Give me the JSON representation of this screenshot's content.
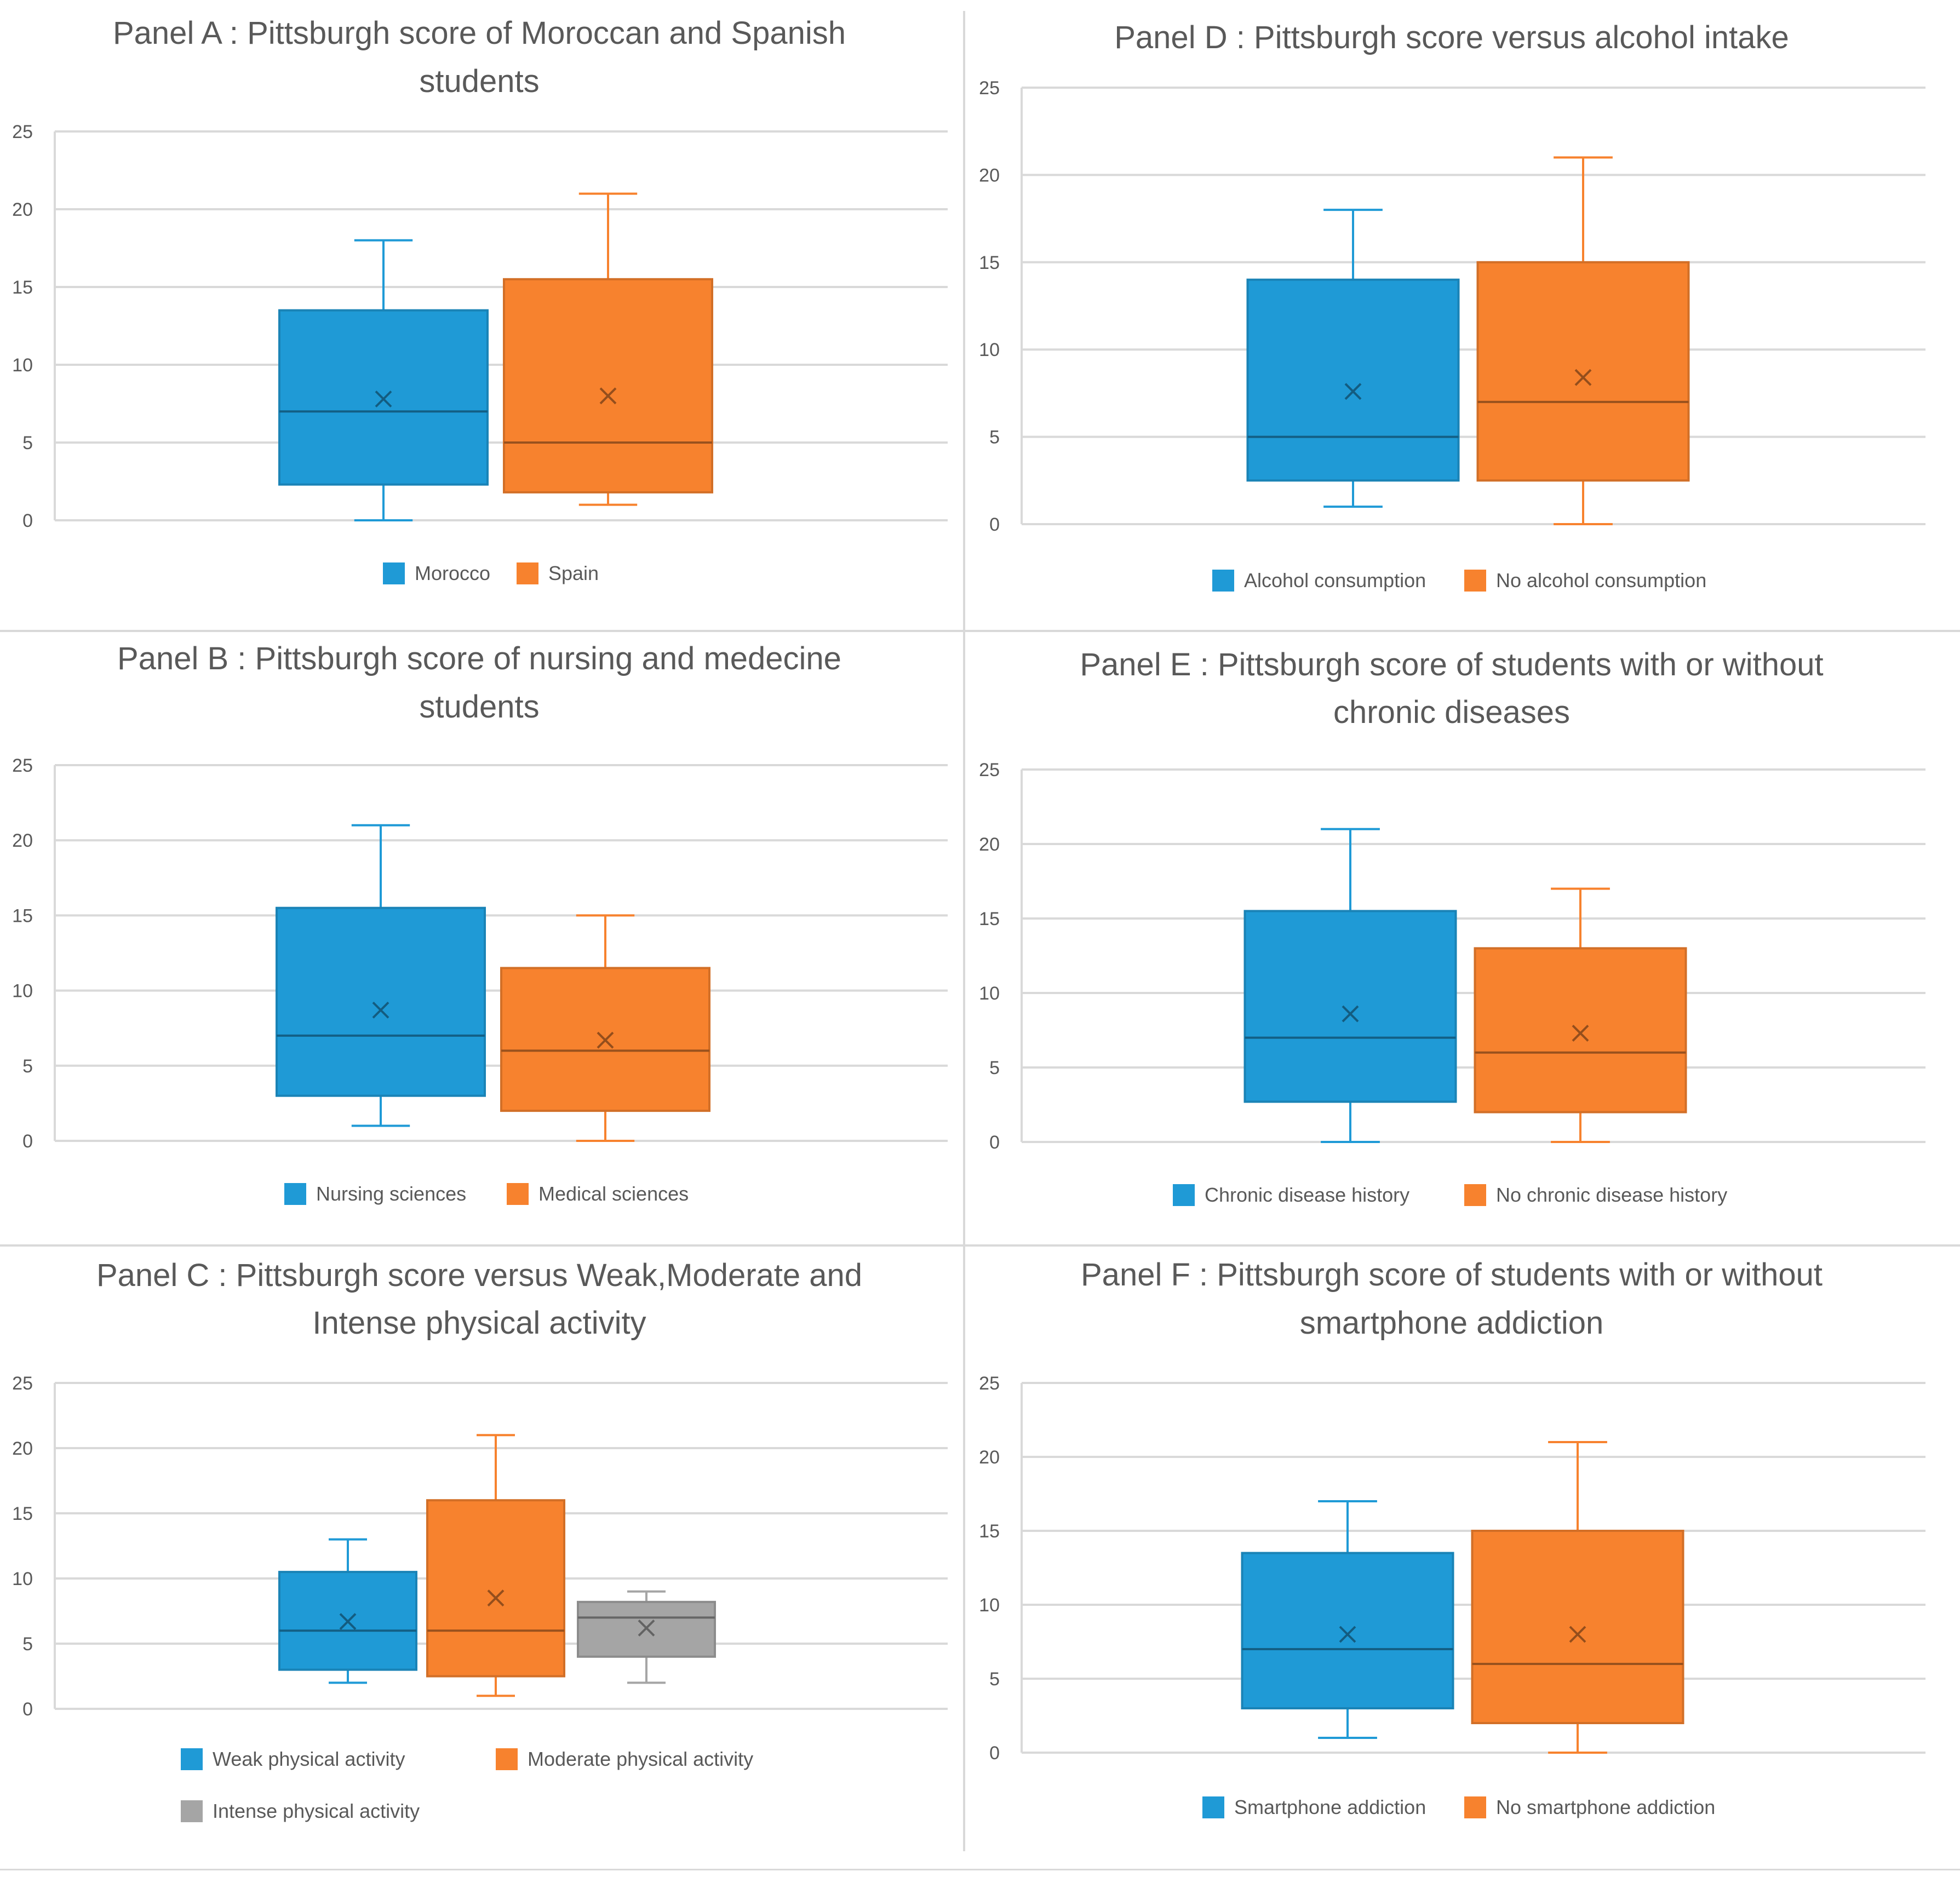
{
  "colors": {
    "blue": "#1f9ad6",
    "orange": "#f7822e",
    "gray": "#a5a5a5",
    "grid": "#d9d9d9",
    "axis_text": "#595959",
    "title_text": "#595959"
  },
  "chart_data": [
    {
      "id": "panel-a",
      "type": "box",
      "title_lines": [
        "Panel A : Pittsburgh score of Moroccan and Spanish",
        "students"
      ],
      "ylim": [
        0,
        25
      ],
      "yticks": [
        "0",
        "5",
        "10",
        "15",
        "20",
        "25"
      ],
      "series": [
        {
          "name": "Morocco",
          "color": "#1f9ad6",
          "min": 0,
          "q1": 2.3,
          "median": 7,
          "q3": 13.5,
          "max": 18,
          "mean": 7.8
        },
        {
          "name": "Spain",
          "color": "#f7822e",
          "min": 1,
          "q1": 1.8,
          "median": 5,
          "q3": 15.5,
          "max": 21,
          "mean": 8
        }
      ]
    },
    {
      "id": "panel-b",
      "type": "box",
      "title_lines": [
        "Panel B : Pittsburgh score of nursing and medecine",
        "students"
      ],
      "ylim": [
        0,
        25
      ],
      "yticks": [
        "0",
        "5",
        "10",
        "15",
        "20",
        "25"
      ],
      "series": [
        {
          "name": "Nursing sciences",
          "color": "#1f9ad6",
          "min": 1,
          "q1": 3,
          "median": 7,
          "q3": 15.5,
          "max": 21,
          "mean": 8.7
        },
        {
          "name": "Medical sciences",
          "color": "#f7822e",
          "min": 0,
          "q1": 2,
          "median": 6,
          "q3": 11.5,
          "max": 15,
          "mean": 6.7
        }
      ]
    },
    {
      "id": "panel-c",
      "type": "box",
      "title_lines": [
        "Panel C : Pittsburgh score versus Weak,Moderate and",
        "Intense physical activity"
      ],
      "ylim": [
        0,
        25
      ],
      "yticks": [
        "0",
        "5",
        "10",
        "15",
        "20",
        "25"
      ],
      "series": [
        {
          "name": "Weak physical activity",
          "color": "#1f9ad6",
          "min": 2,
          "q1": 3,
          "median": 6,
          "q3": 10.5,
          "max": 13,
          "mean": 6.7
        },
        {
          "name": "Moderate physical activity",
          "color": "#f7822e",
          "min": 1,
          "q1": 2.5,
          "median": 6,
          "q3": 16,
          "max": 21,
          "mean": 8.5
        },
        {
          "name": "Intense physical activity",
          "color": "#a5a5a5",
          "min": 2,
          "q1": 4,
          "median": 7,
          "q3": 8.2,
          "max": 9,
          "mean": 6.2
        }
      ]
    },
    {
      "id": "panel-d",
      "type": "box",
      "title_lines": [
        "Panel D : Pittsburgh score versus alcohol intake"
      ],
      "ylim": [
        0,
        25
      ],
      "yticks": [
        "0",
        "5",
        "10",
        "15",
        "20",
        "25"
      ],
      "series": [
        {
          "name": "Alcohol consumption",
          "color": "#1f9ad6",
          "min": 1,
          "q1": 2.5,
          "median": 5,
          "q3": 14,
          "max": 18,
          "mean": 7.6
        },
        {
          "name": "No alcohol consumption",
          "color": "#f7822e",
          "min": 0,
          "q1": 2.5,
          "median": 7,
          "q3": 15,
          "max": 21,
          "mean": 8.4
        }
      ]
    },
    {
      "id": "panel-e",
      "type": "box",
      "title_lines": [
        "Panel E : Pittsburgh score of students with or without",
        "chronic diseases"
      ],
      "ylim": [
        0,
        25
      ],
      "yticks": [
        "0",
        "5",
        "10",
        "15",
        "20",
        "25"
      ],
      "series": [
        {
          "name": "Chronic disease history",
          "color": "#1f9ad6",
          "min": 0,
          "q1": 2.7,
          "median": 7,
          "q3": 15.5,
          "max": 21,
          "mean": 8.6
        },
        {
          "name": "No chronic disease history",
          "color": "#f7822e",
          "min": 0,
          "q1": 2,
          "median": 6,
          "q3": 13,
          "max": 17,
          "mean": 7.3
        }
      ]
    },
    {
      "id": "panel-f",
      "type": "box",
      "title_lines": [
        "Panel F : Pittsburgh score of students with or without",
        "smartphone addiction"
      ],
      "ylim": [
        0,
        25
      ],
      "yticks": [
        "0",
        "5",
        "10",
        "15",
        "20",
        "25"
      ],
      "series": [
        {
          "name": "Smartphone addiction",
          "color": "#1f9ad6",
          "min": 1,
          "q1": 3,
          "median": 7,
          "q3": 13.5,
          "max": 17,
          "mean": 8
        },
        {
          "name": "No smartphone addiction",
          "color": "#f7822e",
          "min": 0,
          "q1": 2,
          "median": 6,
          "q3": 15,
          "max": 21,
          "mean": 8
        }
      ]
    }
  ]
}
